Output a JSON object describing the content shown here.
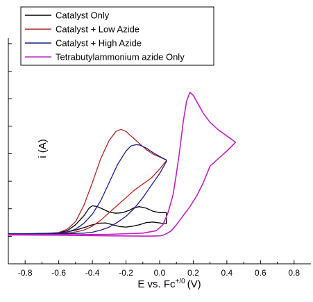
{
  "chart_data": {
    "type": "line",
    "xlabel": "E vs. Fc",
    "xlabel_superscript": "+/0",
    "xlabel_unit": "(V)",
    "ylabel": "i (A)",
    "xlim": [
      -0.9,
      0.9
    ],
    "ylim": [
      -0.1,
      0.65
    ],
    "x_ticks": [
      -0.8,
      -0.6,
      -0.4,
      -0.2,
      0.0,
      0.2,
      0.4,
      0.6,
      0.8
    ],
    "x_tick_labels": [
      "-0.8",
      "-0.6",
      "-0.4",
      "-0.2",
      "0.0",
      "0.2",
      "0.4",
      "0.6",
      "0.8"
    ],
    "y_tick_count": 8,
    "grid": false,
    "legend_position": "top-left",
    "series": [
      {
        "name": "Catalyst Only",
        "color": "#000000",
        "x": [
          -0.9,
          -0.7,
          -0.6,
          -0.55,
          -0.5,
          -0.45,
          -0.42,
          -0.4,
          -0.37,
          -0.33,
          -0.3,
          -0.26,
          -0.22,
          -0.18,
          -0.15,
          -0.12,
          -0.08,
          -0.04,
          0.0,
          0.04,
          0.04,
          0.0,
          -0.04,
          -0.08,
          -0.12,
          -0.16,
          -0.2,
          -0.24,
          -0.28,
          -0.32,
          -0.36,
          -0.4,
          -0.44,
          -0.5,
          -0.56,
          -0.62,
          -0.7,
          -0.8,
          -0.9
        ],
        "y": [
          0.0,
          0.0,
          0.003,
          0.01,
          0.03,
          0.06,
          0.085,
          0.093,
          0.09,
          0.08,
          0.072,
          0.068,
          0.07,
          0.078,
          0.087,
          0.09,
          0.085,
          0.075,
          0.07,
          0.07,
          0.033,
          0.036,
          0.039,
          0.037,
          0.03,
          0.025,
          0.022,
          0.024,
          0.03,
          0.036,
          0.035,
          0.03,
          0.022,
          0.012,
          0.005,
          0.002,
          0.001,
          0.0,
          0.0
        ]
      },
      {
        "name": "Catalyst + Low Azide",
        "color": "#b22222",
        "x": [
          -0.9,
          -0.7,
          -0.6,
          -0.55,
          -0.5,
          -0.45,
          -0.4,
          -0.35,
          -0.3,
          -0.26,
          -0.23,
          -0.2,
          -0.16,
          -0.12,
          -0.08,
          -0.04,
          0.0,
          0.04,
          0.04,
          0.0,
          -0.05,
          -0.1,
          -0.15,
          -0.2,
          -0.25,
          -0.3,
          -0.35,
          -0.4,
          -0.45,
          -0.5,
          -0.55,
          -0.62,
          -0.7,
          -0.8,
          -0.9
        ],
        "y": [
          0.0,
          0.0,
          0.004,
          0.015,
          0.04,
          0.095,
          0.17,
          0.25,
          0.31,
          0.34,
          0.347,
          0.34,
          0.32,
          0.3,
          0.28,
          0.265,
          0.255,
          0.245,
          0.243,
          0.215,
          0.185,
          0.165,
          0.145,
          0.12,
          0.095,
          0.07,
          0.045,
          0.025,
          0.012,
          0.006,
          0.003,
          0.001,
          0.0,
          0.0,
          0.0
        ]
      },
      {
        "name": "Catalyst + High Azide",
        "color": "#1a1a8c",
        "x": [
          -0.9,
          -0.7,
          -0.6,
          -0.55,
          -0.5,
          -0.45,
          -0.4,
          -0.35,
          -0.3,
          -0.25,
          -0.2,
          -0.17,
          -0.14,
          -0.12,
          -0.08,
          -0.04,
          0.0,
          0.04,
          0.04,
          0.0,
          -0.05,
          -0.1,
          -0.15,
          -0.2,
          -0.25,
          -0.3,
          -0.35,
          -0.4,
          -0.45,
          -0.5,
          -0.55,
          -0.62,
          -0.7,
          -0.8,
          -0.9
        ],
        "y": [
          0.0,
          0.0,
          0.002,
          0.006,
          0.015,
          0.035,
          0.065,
          0.11,
          0.17,
          0.23,
          0.275,
          0.292,
          0.296,
          0.295,
          0.285,
          0.27,
          0.257,
          0.245,
          0.24,
          0.2,
          0.16,
          0.12,
          0.085,
          0.058,
          0.038,
          0.022,
          0.012,
          0.005,
          0.002,
          0.001,
          0.0,
          0.0,
          0.0,
          0.0,
          0.0
        ]
      },
      {
        "name": "Tetrabutylammonium azide Only",
        "color": "#c020c0",
        "x": [
          -0.9,
          -0.5,
          -0.3,
          -0.1,
          -0.02,
          0.02,
          0.05,
          0.08,
          0.1,
          0.12,
          0.14,
          0.16,
          0.18,
          0.2,
          0.23,
          0.26,
          0.3,
          0.35,
          0.4,
          0.45,
          0.45,
          0.4,
          0.35,
          0.3,
          0.26,
          0.22,
          0.18,
          0.14,
          0.1,
          0.07,
          0.04,
          0.02,
          0.0,
          -0.05,
          -0.1,
          -0.3,
          -0.6,
          -0.9
        ],
        "y": [
          -0.003,
          -0.003,
          -0.002,
          0.002,
          0.01,
          0.03,
          0.07,
          0.13,
          0.2,
          0.28,
          0.37,
          0.44,
          0.47,
          0.46,
          0.43,
          0.4,
          0.37,
          0.345,
          0.325,
          0.305,
          0.303,
          0.275,
          0.25,
          0.225,
          0.17,
          0.125,
          0.09,
          0.06,
          0.03,
          0.01,
          0.0,
          -0.005,
          -0.007,
          -0.008,
          -0.008,
          -0.007,
          -0.005,
          -0.004
        ]
      }
    ]
  }
}
